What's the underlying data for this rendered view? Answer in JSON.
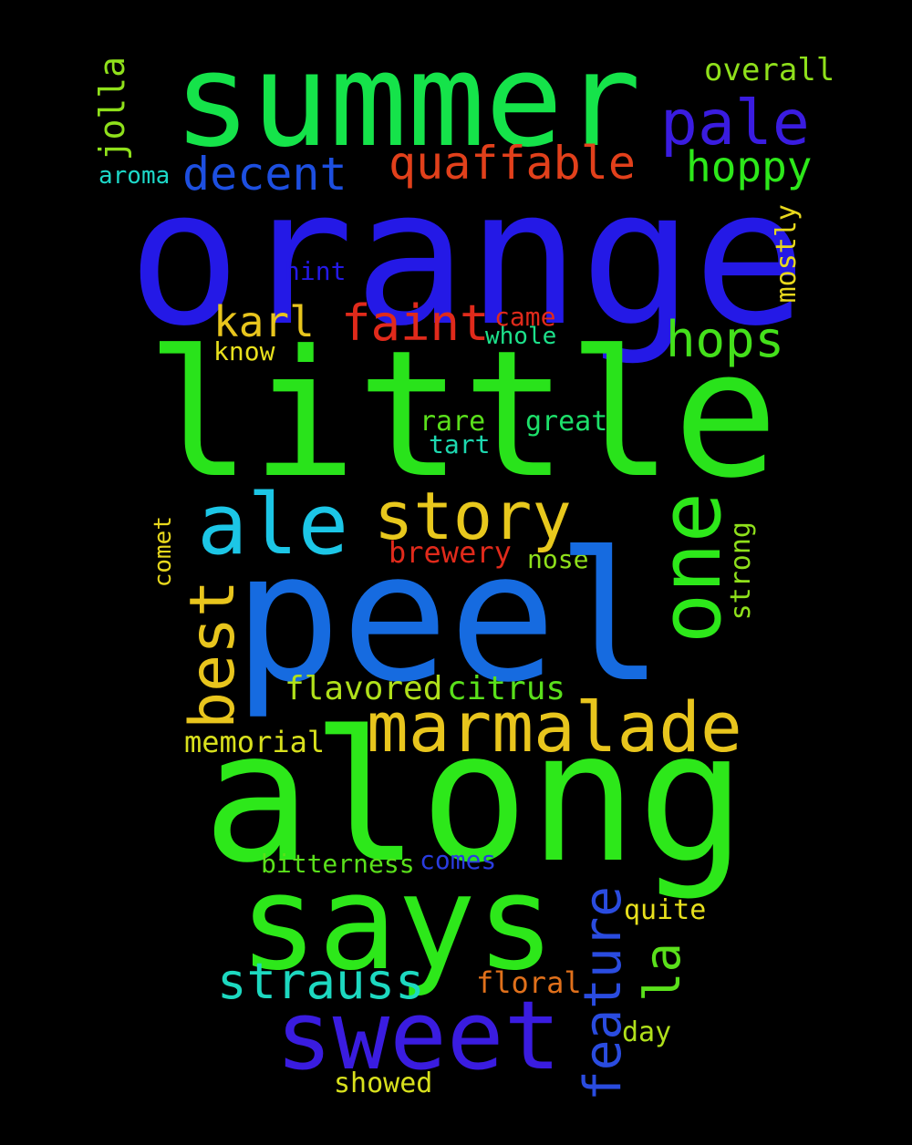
{
  "words": {
    "summer": {
      "text": "summer",
      "color": "#15e34a"
    },
    "orange": {
      "text": "orange",
      "color": "#2419e6"
    },
    "little": {
      "text": "little",
      "color": "#29e31b"
    },
    "peel": {
      "text": "peel",
      "color": "#166be0"
    },
    "along": {
      "text": "along",
      "color": "#2de81a"
    },
    "says": {
      "text": "says",
      "color": "#2de81a"
    },
    "sweet": {
      "text": "sweet",
      "color": "#3a1ce0"
    },
    "one": {
      "text": "one",
      "color": "#2de81a"
    },
    "marmalade": {
      "text": "marmalade",
      "color": "#e8c51d"
    },
    "story": {
      "text": "story",
      "color": "#e8c81d"
    },
    "ale": {
      "text": "ale",
      "color": "#1cc6e6"
    },
    "pale": {
      "text": "pale",
      "color": "#3a1ce0"
    },
    "best": {
      "text": "best",
      "color": "#e8c51d"
    },
    "feature": {
      "text": "feature",
      "color": "#2a4ce0"
    },
    "quaffable": {
      "text": "quaffable",
      "color": "#e2401b"
    },
    "decent": {
      "text": "decent",
      "color": "#1d4fe0"
    },
    "hoppy": {
      "text": "hoppy",
      "color": "#2de81a"
    },
    "hops": {
      "text": "hops",
      "color": "#44e01b"
    },
    "faint": {
      "text": "faint",
      "color": "#e02a1b"
    },
    "karl": {
      "text": "karl",
      "color": "#e8c51d"
    },
    "strauss": {
      "text": "strauss",
      "color": "#1dd8c0"
    },
    "la": {
      "text": "la",
      "color": "#5ae01b"
    },
    "jolla": {
      "text": "jolla",
      "color": "#8fe01b"
    },
    "overall": {
      "text": "overall",
      "color": "#8fe01b"
    },
    "mostly": {
      "text": "mostly",
      "color": "#e8d81d"
    },
    "aroma": {
      "text": "aroma",
      "color": "#1dd8c8"
    },
    "hint": {
      "text": "hint",
      "color": "#2419e6"
    },
    "came": {
      "text": "came",
      "color": "#e02a1b"
    },
    "whole": {
      "text": "whole",
      "color": "#1de08a"
    },
    "know": {
      "text": "know",
      "color": "#e8e01d"
    },
    "rare": {
      "text": "rare",
      "color": "#5ae01b"
    },
    "great": {
      "text": "great",
      "color": "#1de06a"
    },
    "tart": {
      "text": "tart",
      "color": "#1dd8b0"
    },
    "brewery": {
      "text": "brewery",
      "color": "#e02a1b"
    },
    "nose": {
      "text": "nose",
      "color": "#8fe01b"
    },
    "comet": {
      "text": "comet",
      "color": "#e8d81d"
    },
    "strong": {
      "text": "strong",
      "color": "#8fe01b"
    },
    "flavored": {
      "text": "flavored",
      "color": "#b0e01b"
    },
    "citrus": {
      "text": "citrus",
      "color": "#5ae01b"
    },
    "memorial": {
      "text": "memorial",
      "color": "#d8e01d"
    },
    "bitterness": {
      "text": "bitterness",
      "color": "#5ae01b"
    },
    "comes": {
      "text": "comes",
      "color": "#2a3ce0"
    },
    "quite": {
      "text": "quite",
      "color": "#e8e01d"
    },
    "floral": {
      "text": "floral",
      "color": "#e0701b"
    },
    "day": {
      "text": "day",
      "color": "#b0e01b"
    },
    "showed": {
      "text": "showed",
      "color": "#d8e01d"
    }
  }
}
